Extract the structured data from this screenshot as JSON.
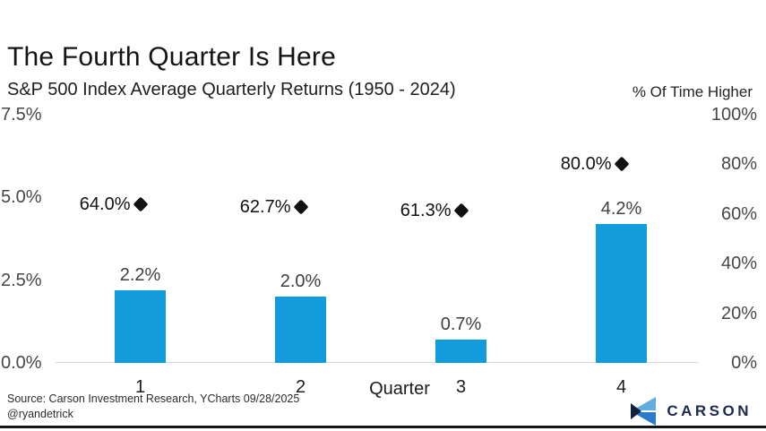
{
  "header": {
    "title": "The Fourth Quarter Is Here",
    "subtitle": "S&P 500 Index Average Quarterly Returns (1950 - 2024)",
    "right_axis_title": "% Of Time Higher"
  },
  "chart_data": {
    "type": "bar",
    "categories": [
      "1",
      "2",
      "3",
      "4"
    ],
    "xlabel": "Quarter",
    "series": [
      {
        "name": "Average quarterly return",
        "type": "bar",
        "axis": "left",
        "values": [
          2.2,
          2.0,
          0.7,
          4.2
        ],
        "labels": [
          "2.2%",
          "2.0%",
          "0.7%",
          "4.2%"
        ],
        "color": "#129cdb"
      },
      {
        "name": "% Of Time Higher",
        "type": "scatter",
        "marker": "diamond",
        "axis": "right",
        "values": [
          64.0,
          62.7,
          61.3,
          80.0
        ],
        "labels": [
          "64.0%",
          "62.7%",
          "61.3%",
          "80.0%"
        ],
        "color": "#111111"
      }
    ],
    "left_axis": {
      "ticks": [
        "7.5%",
        "5.0%",
        "2.5%",
        "0.0%"
      ],
      "values": [
        7.5,
        5.0,
        2.5,
        0.0
      ],
      "min": 0,
      "max": 7.5
    },
    "right_axis": {
      "ticks": [
        "100%",
        "80%",
        "60%",
        "40%",
        "20%",
        "0%"
      ],
      "values": [
        100,
        80,
        60,
        40,
        20,
        0
      ],
      "min": 0,
      "max": 100
    },
    "grid": false,
    "legend_position": "none"
  },
  "footer": {
    "source": "Source: Carson Investment Research, YCharts 09/28/2025",
    "handle": "@ryandetrick",
    "brand": "CARSON"
  },
  "colors": {
    "bar": "#129cdb",
    "diamond": "#111111",
    "baseline": "#d8d8d8",
    "brand_navy": "#1b2b4a",
    "logo_light_blue": "#62ace0",
    "logo_mid_blue": "#2d7ccb",
    "logo_dark_navy": "#13203c"
  }
}
